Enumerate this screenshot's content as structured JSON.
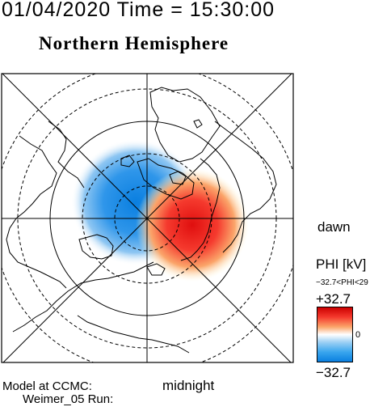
{
  "header": {
    "timestamp": "01/04/2020 Time = 15:30:00",
    "title": "Northern Hemisphere"
  },
  "map": {
    "orientation_labels": {
      "right": "dawn",
      "bottom": "midnight"
    },
    "potential_pattern": {
      "positive_cell": "dawn-midnight sector",
      "negative_cell": "noon-dusk sector",
      "colors": {
        "positive": "#e31a1c",
        "negative": "#1f78d4",
        "zero": "#ffffff"
      }
    }
  },
  "colorbar": {
    "title": "PHI [kV]",
    "range_text": "−32.7<PHI<29",
    "max_label": "+32.7",
    "zero_label": "0",
    "min_label": "−32.7"
  },
  "footer": {
    "model_label": "Model at CCMC:",
    "run_label": "Weimer_05 Run:"
  }
}
